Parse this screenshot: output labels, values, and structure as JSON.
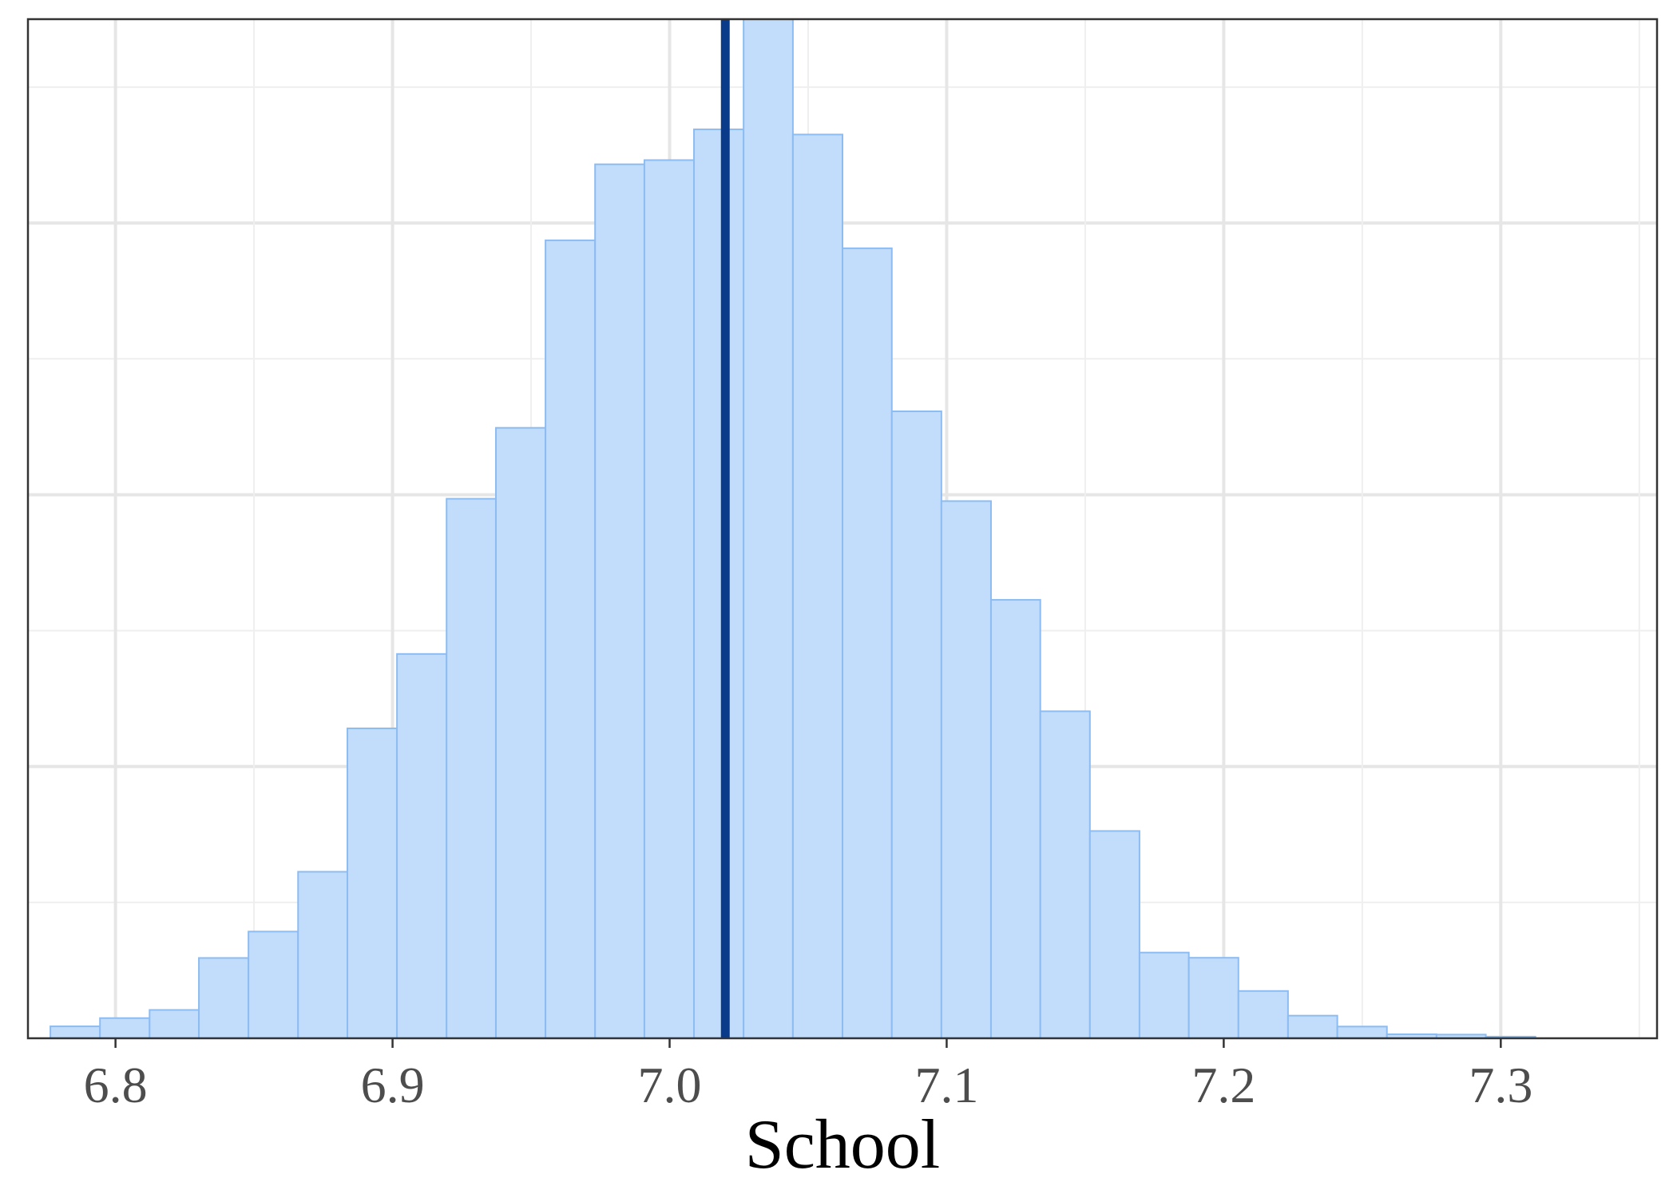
{
  "chart_data": {
    "type": "bar",
    "subtype": "histogram",
    "title": "",
    "xlabel": "School",
    "ylabel": "",
    "xlim": [
      6.7684,
      7.3564
    ],
    "ylim": [
      0,
      1
    ],
    "x_ticks": [
      6.8,
      6.9,
      7.0,
      7.1,
      7.2,
      7.3
    ],
    "x_tick_labels": [
      "6.8",
      "6.9",
      "7.0",
      "7.1",
      "7.2",
      "7.3"
    ],
    "y_gridlines": [
      0.1333,
      0.2667,
      0.4,
      0.5333,
      0.6667,
      0.8,
      0.9333
    ],
    "y_tick_labels_shown": false,
    "grid": true,
    "legend": "none",
    "bin_width": 0.01786,
    "bins": [
      {
        "x0": 6.7765,
        "x1": 6.7944,
        "count": 0.0117
      },
      {
        "x0": 6.7944,
        "x1": 6.8123,
        "count": 0.0198
      },
      {
        "x0": 6.8123,
        "x1": 6.8301,
        "count": 0.0278
      },
      {
        "x0": 6.8301,
        "x1": 6.848,
        "count": 0.0788
      },
      {
        "x0": 6.848,
        "x1": 6.8659,
        "count": 0.1047
      },
      {
        "x0": 6.8659,
        "x1": 6.8837,
        "count": 0.1634
      },
      {
        "x0": 6.8837,
        "x1": 6.9016,
        "count": 0.3041
      },
      {
        "x0": 6.9016,
        "x1": 6.9195,
        "count": 0.3771
      },
      {
        "x0": 6.9195,
        "x1": 6.9373,
        "count": 0.5294
      },
      {
        "x0": 6.9373,
        "x1": 6.9552,
        "count": 0.599
      },
      {
        "x0": 6.9552,
        "x1": 6.9731,
        "count": 0.783
      },
      {
        "x0": 6.9731,
        "x1": 6.9909,
        "count": 0.8576
      },
      {
        "x0": 6.9909,
        "x1": 7.0088,
        "count": 0.8617
      },
      {
        "x0": 7.0088,
        "x1": 7.0267,
        "count": 0.8919
      },
      {
        "x0": 7.0267,
        "x1": 7.0445,
        "count": 1.0
      },
      {
        "x0": 7.0445,
        "x1": 7.0624,
        "count": 0.8868
      },
      {
        "x0": 7.0624,
        "x1": 7.0802,
        "count": 0.7752
      },
      {
        "x0": 7.0802,
        "x1": 7.0981,
        "count": 0.6152
      },
      {
        "x0": 7.0981,
        "x1": 7.116,
        "count": 0.5271
      },
      {
        "x0": 7.116,
        "x1": 7.1338,
        "count": 0.4302
      },
      {
        "x0": 7.1338,
        "x1": 7.1517,
        "count": 0.3209
      },
      {
        "x0": 7.1517,
        "x1": 7.1696,
        "count": 0.2034
      },
      {
        "x0": 7.1696,
        "x1": 7.1874,
        "count": 0.0841
      },
      {
        "x0": 7.1874,
        "x1": 7.2053,
        "count": 0.079
      },
      {
        "x0": 7.2053,
        "x1": 7.2232,
        "count": 0.0464
      },
      {
        "x0": 7.2232,
        "x1": 7.241,
        "count": 0.0222
      },
      {
        "x0": 7.241,
        "x1": 7.2589,
        "count": 0.0115
      },
      {
        "x0": 7.2589,
        "x1": 7.2768,
        "count": 0.0039
      },
      {
        "x0": 7.2768,
        "x1": 7.2946,
        "count": 0.0036
      },
      {
        "x0": 7.2946,
        "x1": 7.3125,
        "count": 0.0016
      }
    ],
    "reference_line": {
      "x": 7.0201,
      "color": "#0a3a8a"
    },
    "colors": {
      "bar_fill": "#c2ddfc",
      "bar_stroke": "#8cbcf2",
      "grid_major": "#e6e6e6",
      "grid_minor": "#efefef",
      "panel_border": "#333333",
      "tick_label": "#4d4d4d",
      "axis_title": "#000000"
    }
  }
}
